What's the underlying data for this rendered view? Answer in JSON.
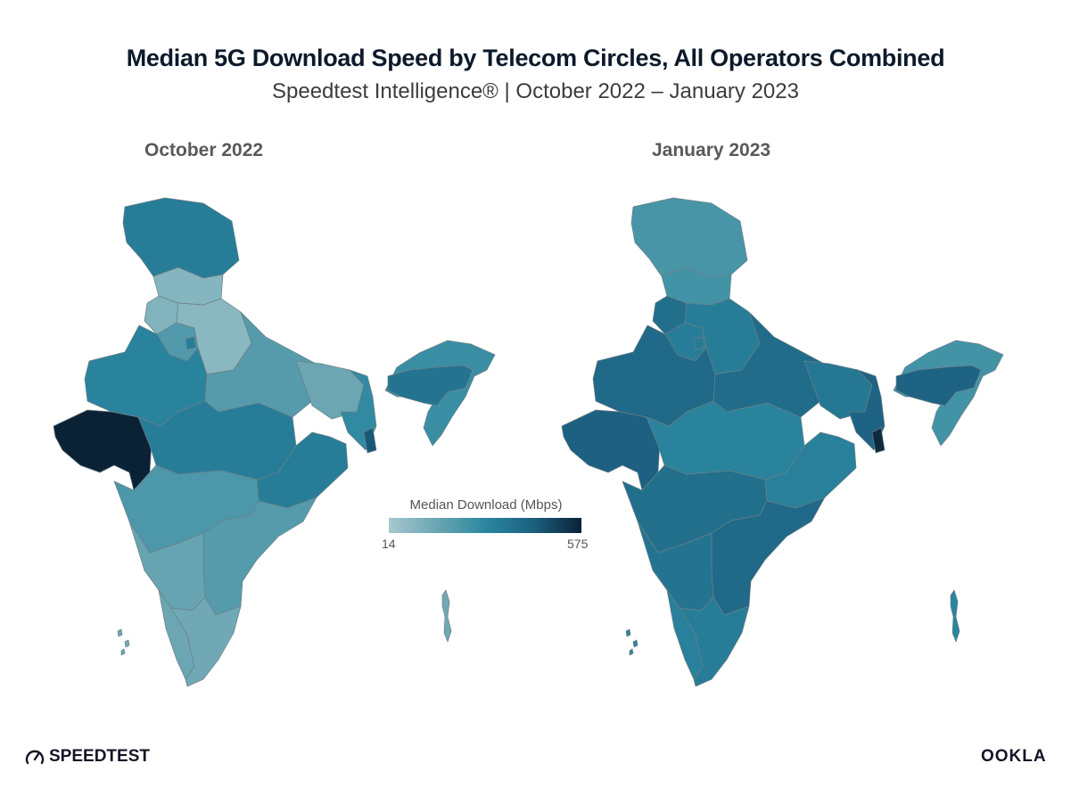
{
  "title": "Median 5G Download Speed by Telecom Circles, All Operators Combined",
  "subtitle": "Speedtest Intelligence® | October 2022 – January 2023",
  "panels": [
    {
      "label": "October 2022",
      "regions": {
        "jammu_kashmir": 330,
        "himachal": 90,
        "punjab": 100,
        "haryana": 210,
        "uttar_pradesh_west": 80,
        "rajasthan": 310,
        "delhi": 330,
        "gujarat": 575,
        "madhya_pradesh": 330,
        "uttar_pradesh_east": 200,
        "bihar": 150,
        "kolkata": 450,
        "west_bengal": 280,
        "northeast": 260,
        "assam": 360,
        "odisha": 330,
        "maharashtra": 220,
        "andhra_pradesh": 200,
        "karnataka": 160,
        "kerala": 150,
        "tamil_nadu": 140,
        "andaman_islands": 140,
        "lakshadweep": 140
      }
    },
    {
      "label": "January 2023",
      "regions": {
        "jammu_kashmir": 230,
        "himachal": 240,
        "punjab": 380,
        "haryana": 330,
        "uttar_pradesh_west": 330,
        "rajasthan": 400,
        "delhi": 340,
        "gujarat": 430,
        "madhya_pradesh": 310,
        "uttar_pradesh_east": 390,
        "bihar": 350,
        "kolkata": 560,
        "west_bengal": 420,
        "northeast": 240,
        "assam": 420,
        "odisha": 320,
        "maharashtra": 380,
        "andhra_pradesh": 400,
        "karnataka": 360,
        "kerala": 320,
        "tamil_nadu": 330,
        "andaman_islands": 300,
        "lakshadweep": 300
      }
    }
  ],
  "legend": {
    "title": "Median Download (Mbps)",
    "min": 14,
    "max": 575,
    "min_label": "14",
    "max_label": "575",
    "colors": [
      "#a6c8cf",
      "#6aa5b2",
      "#2b87a0",
      "#1c5f80",
      "#0b2236"
    ]
  },
  "brand": {
    "speedtest": "SPEEDTEST",
    "ookla": "OOKLA"
  }
}
